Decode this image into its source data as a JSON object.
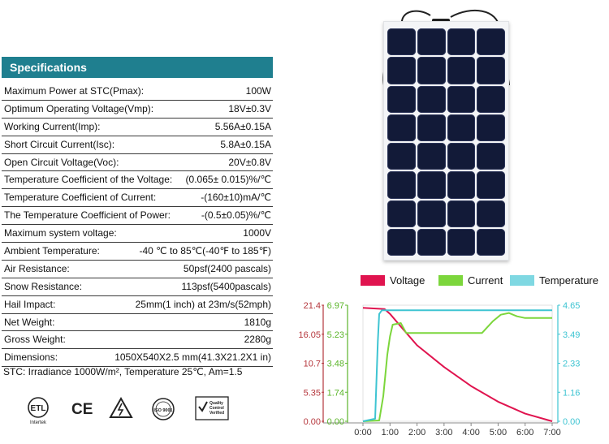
{
  "specifications": {
    "title": "Specifications",
    "rows": [
      {
        "label": "Maximum Power at STC(Pmax):",
        "value": "100W"
      },
      {
        "label": "Optimum Operating Voltage(Vmp):",
        "value": "18V±0.3V"
      },
      {
        "label": "Working Current(Imp):",
        "value": "5.56A±0.15A"
      },
      {
        "label": "Short Circuit Current(Isc):",
        "value": "5.8A±0.15A"
      },
      {
        "label": "Open Circuit Voltage(Voc):",
        "value": "20V±0.8V"
      },
      {
        "label": "Temperature Coefficient of the Voltage:",
        "value": "(0.065± 0.015)%/℃"
      },
      {
        "label": "Temperature Coefficient of Current:",
        "value": "-(160±10)mA/℃"
      },
      {
        "label": "The Temperature Coefficient of Power:",
        "value": "-(0.5±0.05)%/℃"
      },
      {
        "label": "Maximum system voltage:",
        "value": "1000V"
      },
      {
        "label": "Ambient Temperature:",
        "value": "-40 ℃ to 85℃(-40℉ to 185℉)"
      },
      {
        "label": "Air Resistance:",
        "value": "50psf(2400 pascals)"
      },
      {
        "label": "Snow Resistance:",
        "value": "113psf(5400pascals)"
      },
      {
        "label": "Hail Impact:",
        "value": "25mm(1 inch) at 23m/s(52mph)"
      },
      {
        "label": "Net Weight:",
        "value": "1810g"
      },
      {
        "label": "Gross Weight:",
        "value": "2280g"
      },
      {
        "label": "Dimensions:",
        "value": "1050X540X2.5 mm(41.3X21.2X1 in)"
      }
    ],
    "stc_note": "STC: Irradiance 1000W/m², Temperature 25℃, Am=1.5"
  },
  "certifications": {
    "etl_text": "ETL",
    "intertek_text": "Intertek",
    "ce_text": "CE",
    "iso_text": "ISO 9001",
    "qc_badge_lines": [
      "Quality",
      "Control",
      "Verified"
    ],
    "icons": [
      "etl-listed-icon",
      "ce-mark-icon",
      "high-voltage-warning-icon",
      "iso-9001-icon",
      "quality-control-verified-icon"
    ]
  },
  "chart_data": {
    "type": "line",
    "x_ticks": [
      "0:00",
      "1:00",
      "2:00",
      "3:00",
      "4:00",
      "5:00",
      "6:00",
      "7:00"
    ],
    "xlim": [
      0,
      7
    ],
    "axes": {
      "voltage": {
        "ticks": [
          "21.4",
          "16.05",
          "10.7",
          "5.35",
          "0.00"
        ],
        "range": [
          0,
          21.4
        ],
        "color": "#b5363c"
      },
      "current": {
        "ticks": [
          "6.97",
          "5.23",
          "3.48",
          "1.74",
          "0.00"
        ],
        "range": [
          0,
          6.97
        ],
        "color": "#5bb52a"
      },
      "temperature": {
        "ticks": [
          "4.65",
          "3.49",
          "2.33",
          "1.16",
          "0.00"
        ],
        "range": [
          0,
          4.65
        ],
        "color": "#3ec4d2"
      }
    },
    "series": [
      {
        "name": "Voltage",
        "color": "#e0144f",
        "axis": "voltage",
        "x": [
          0,
          0.8,
          1.0,
          1.5,
          2.0,
          3.0,
          4.0,
          5.0,
          6.0,
          7.0
        ],
        "y": [
          20.9,
          20.7,
          19.8,
          16.9,
          14.0,
          10.0,
          6.5,
          3.6,
          1.4,
          0.0
        ]
      },
      {
        "name": "Current",
        "color": "#7cd63c",
        "axis": "current",
        "x": [
          0,
          0.6,
          0.75,
          0.9,
          1.0,
          1.1,
          1.4,
          1.6,
          2.0,
          3.0,
          4.0,
          4.4,
          4.8,
          5.1,
          5.4,
          5.7,
          6.0,
          7.0
        ],
        "y": [
          0.0,
          0.05,
          1.5,
          4.0,
          5.1,
          5.8,
          5.9,
          5.3,
          5.3,
          5.3,
          5.3,
          5.3,
          6.0,
          6.4,
          6.5,
          6.3,
          6.2,
          6.2
        ]
      },
      {
        "name": "Temperature",
        "color": "#3ec4d2",
        "axis": "temperature",
        "x": [
          0,
          0.45,
          0.55,
          0.6,
          0.7,
          1.0,
          7.0
        ],
        "y": [
          0.0,
          0.1,
          3.2,
          4.3,
          4.45,
          4.45,
          4.45
        ]
      }
    ]
  }
}
